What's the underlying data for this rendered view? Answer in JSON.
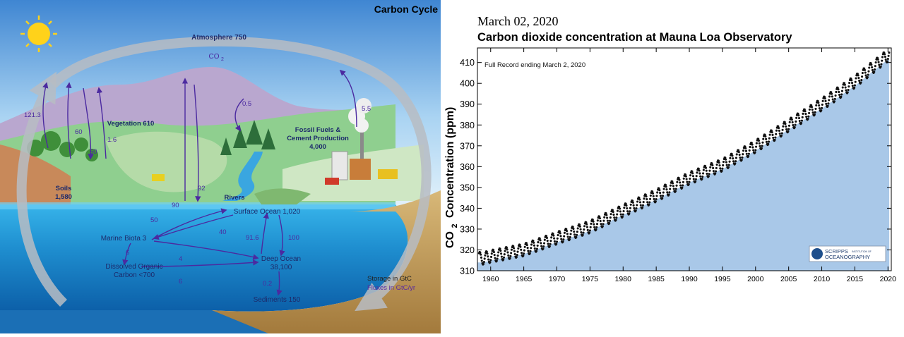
{
  "diagram": {
    "title": "Carbon Cycle",
    "reservoirs": {
      "atmosphere": "Atmosphere 750",
      "co2_symbol": "CO",
      "co2_sub": "2",
      "vegetation": "Vegetation 610",
      "soils_name": "Soils",
      "soils_value": "1,580",
      "fossil_line1": "Fossil Fuels &",
      "fossil_line2": "Cement Production",
      "fossil_line3": "4,000",
      "rivers": "Rivers",
      "surface_ocean": "Surface Ocean 1,020",
      "marine_biota": "Marine Biota 3",
      "doc_line1": "Dissolved Organic",
      "doc_line2": "Carbon <700",
      "deep_ocean_line1": "Deep Ocean",
      "deep_ocean_line2": "38,100",
      "sediments": "Sediments 150"
    },
    "fluxes": {
      "f121_3": "121.3",
      "f60a": "60",
      "f60b": "60",
      "f1_6": "1.6",
      "f0_5": "0.5",
      "f5_5": "5.5",
      "f90": "90",
      "f92": "92",
      "f50": "50",
      "f40": "40",
      "f91_6": "91.6",
      "f100": "100",
      "f6a": "6",
      "f4": "4",
      "f6b": "6",
      "f0_2": "0.2"
    },
    "legend": {
      "storage": "Storage in GtC",
      "fluxes": "Fluxes in GtC/yr"
    },
    "colors": {
      "flux_purple": "#4b2aa0",
      "ocean": "#2a9fd9",
      "sky_top": "#4a8fd6",
      "hills": "#b9a7cf"
    }
  },
  "chart": {
    "date_label": "March 02, 2020",
    "title": "Carbon dioxide concentration at Mauna Loa Observatory",
    "annotation": "Full Record ending March 2, 2020",
    "ylabel_main": "CO",
    "ylabel_sub": "2",
    "ylabel_rest": "Concentration (ppm)",
    "logo_line1": "SCRIPPS",
    "logo_line1_small": "INSTITUTION OF",
    "logo_line2": "OCEANOGRAPHY",
    "colors": {
      "fill": "#a9c8e8",
      "points": "#111111"
    }
  },
  "chart_data": {
    "type": "scatter",
    "title": "Carbon dioxide concentration at Mauna Loa Observatory",
    "xlabel": "",
    "ylabel": "CO2 Concentration (ppm)",
    "xlim": [
      1958,
      2020.5
    ],
    "ylim": [
      310,
      417
    ],
    "x_ticks": [
      1960,
      1965,
      1970,
      1975,
      1980,
      1985,
      1990,
      1995,
      2000,
      2005,
      2010,
      2015,
      2020
    ],
    "y_ticks": [
      310,
      320,
      330,
      340,
      350,
      360,
      370,
      380,
      390,
      400,
      410
    ],
    "area_under_curve": true,
    "seasonal_amplitude_ppm": 3,
    "annual_mean": {
      "x": [
        1959,
        1960,
        1965,
        1970,
        1975,
        1980,
        1985,
        1990,
        1995,
        2000,
        2005,
        2010,
        2015,
        2020
      ],
      "y": [
        316.0,
        316.9,
        320.0,
        325.7,
        331.1,
        338.8,
        346.1,
        354.4,
        360.8,
        369.7,
        379.8,
        389.9,
        400.8,
        413.5
      ]
    }
  }
}
